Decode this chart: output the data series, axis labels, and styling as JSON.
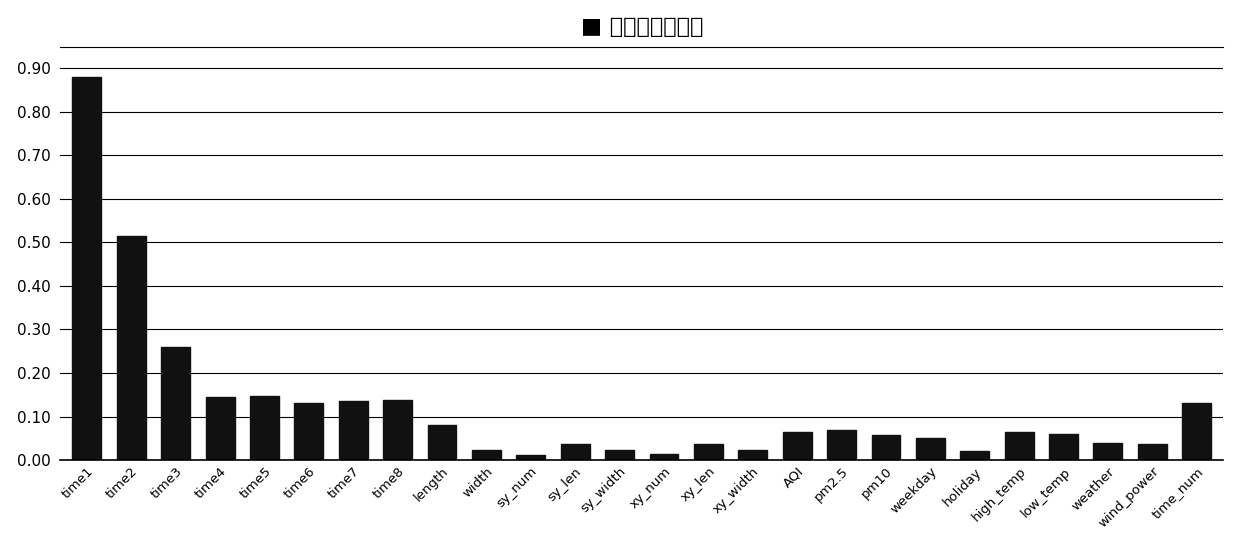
{
  "categories": [
    "time1",
    "time2",
    "time3",
    "time4",
    "time5",
    "time6",
    "time7",
    "time8",
    "length",
    "width",
    "sy_num",
    "sy_len",
    "sy_width",
    "xy_num",
    "xy_len",
    "xy_width",
    "AQI",
    "pm2.5",
    "pm10",
    "weekday",
    "holiday",
    "high_temp",
    "low_temp",
    "weather",
    "wind_power",
    "time_num"
  ],
  "values": [
    0.88,
    0.515,
    0.26,
    0.145,
    0.148,
    0.13,
    0.135,
    0.138,
    0.08,
    0.022,
    0.012,
    0.038,
    0.022,
    0.015,
    0.038,
    0.022,
    0.065,
    0.068,
    0.058,
    0.05,
    0.02,
    0.065,
    0.06,
    0.04,
    0.038,
    0.13
  ],
  "bar_color": "#111111",
  "title_text": "特征重要性度量",
  "title_fontsize": 16,
  "ylim": [
    0,
    0.95
  ],
  "yticks": [
    0.0,
    0.1,
    0.2,
    0.3,
    0.4,
    0.5,
    0.6,
    0.7,
    0.8,
    0.9
  ],
  "background_color": "#ffffff",
  "grid_color": "#000000",
  "tick_fontsize": 11,
  "xtick_fontsize": 9.5
}
